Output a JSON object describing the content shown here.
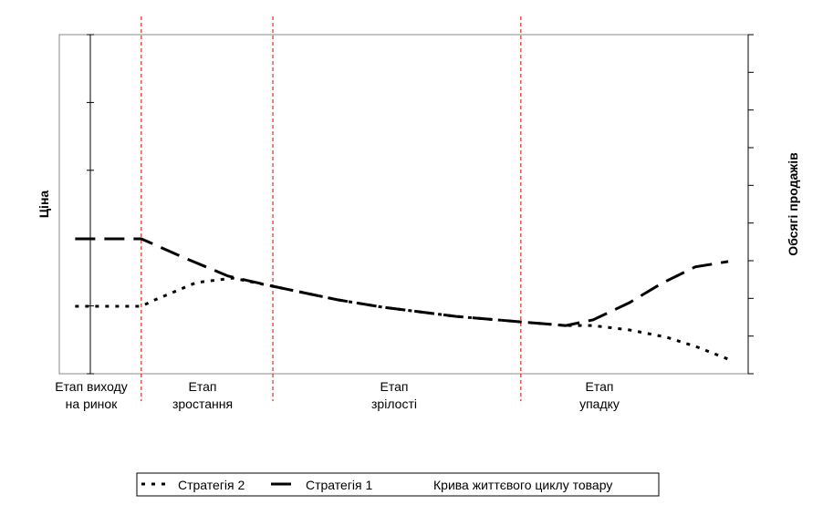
{
  "chart_data": {
    "type": "line",
    "ylabel": "Ціна",
    "y2label": "Обсягі продажів",
    "categories": [
      [
        "Етап виходу",
        "на ринок"
      ],
      [
        "Етап",
        "зростання"
      ],
      [
        "Етап",
        "зрілості"
      ],
      [
        "Етап",
        "упадку"
      ]
    ],
    "stage_boundaries": [
      11.9,
      31.0,
      67.0
    ],
    "xlim": [
      0,
      100
    ],
    "ylim": [
      0,
      100
    ],
    "yticks": [
      0,
      20,
      40,
      60,
      80,
      100
    ],
    "y2lim": [
      0,
      9
    ],
    "y2ticks": [
      0,
      1,
      2,
      3,
      4,
      5,
      6,
      7,
      8,
      9
    ],
    "series": [
      {
        "name": "Стратегія 2",
        "color": "#000000",
        "dash": "dotted",
        "x": [
          2.3,
          11.9,
          13.9,
          19.9,
          25.2,
          31.0,
          40.4,
          47.0,
          57.6,
          67.0,
          73.5,
          77.5,
          82.8,
          88.1,
          92.7,
          97.1
        ],
        "values": [
          19.9,
          19.9,
          21.8,
          26.9,
          28.2,
          25.8,
          21.8,
          19.6,
          16.9,
          15.3,
          14.2,
          14.2,
          12.9,
          10.8,
          7.8,
          4.3
        ]
      },
      {
        "name": "Стратегія 1",
        "color": "#000000",
        "dash": "dashed",
        "x": [
          2.3,
          11.9,
          17.9,
          24.5,
          31.0,
          40.4,
          47.0,
          57.6,
          67.0,
          73.5,
          77.5,
          82.8,
          87.4,
          92.3,
          97.1
        ],
        "values": [
          39.8,
          39.8,
          34.4,
          28.8,
          25.8,
          21.8,
          19.6,
          16.9,
          15.3,
          14.2,
          15.9,
          21.0,
          26.6,
          31.5,
          33.1
        ]
      },
      {
        "name": "Крива життєвого циклу товару",
        "color": "#ffffff",
        "dash": "solid",
        "x": [],
        "values": []
      }
    ],
    "boundary_color": "#e00000"
  }
}
